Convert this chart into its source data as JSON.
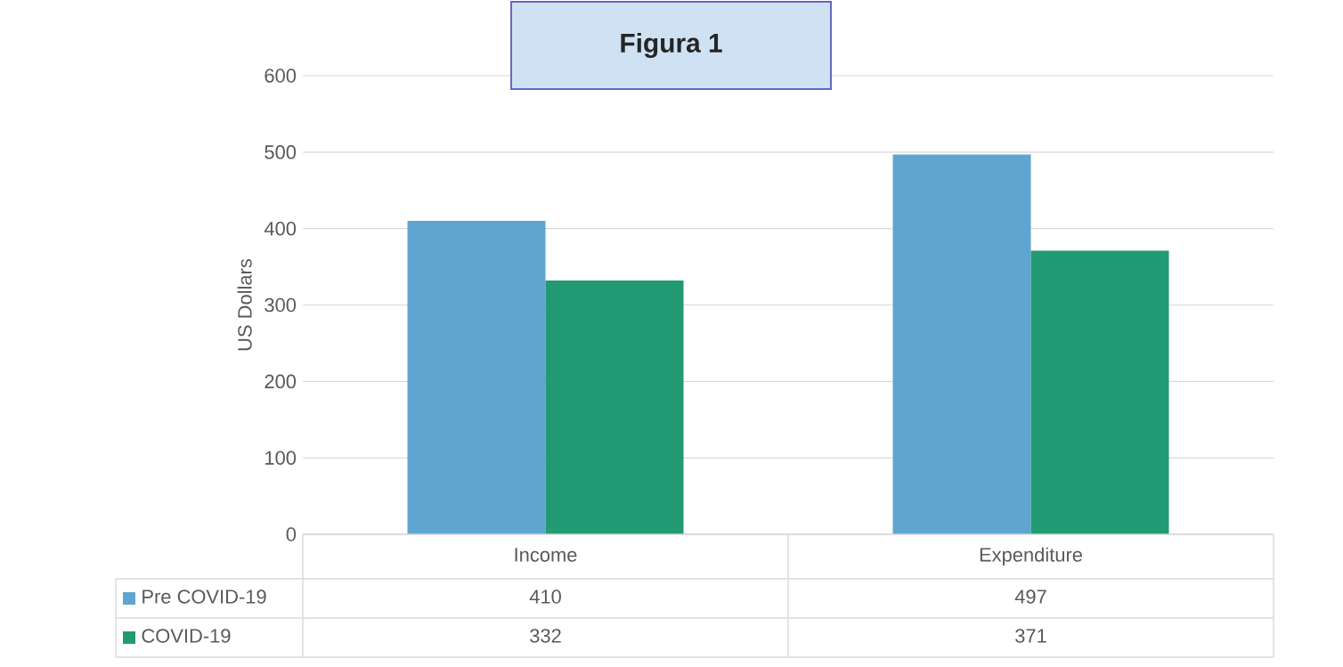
{
  "chart_data": {
    "type": "bar",
    "title": "Figura 1",
    "ylabel": "US Dollars",
    "categories": [
      "Income",
      "Expenditure"
    ],
    "series": [
      {
        "name": "Pre COVID-19",
        "color": "#5fa5d2",
        "values": [
          410,
          497
        ]
      },
      {
        "name": "COVID-19",
        "color": "#229a74",
        "values": [
          332,
          371
        ]
      }
    ],
    "ylim": [
      0,
      600
    ],
    "yticks": [
      0,
      100,
      200,
      300,
      400,
      500,
      600
    ],
    "grid": "y",
    "legend": "bottom",
    "data_labels": true
  }
}
